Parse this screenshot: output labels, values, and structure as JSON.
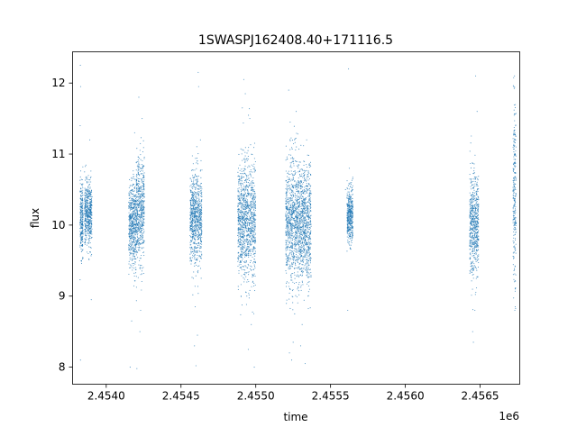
{
  "chart_data": {
    "type": "scatter",
    "title": "1SWASPJ162408.40+171116.5",
    "xlabel": "time",
    "ylabel": "flux",
    "x_offset_label": "1e6",
    "xlim": [
      2453775,
      2456765
    ],
    "ylim": [
      7.76,
      12.44
    ],
    "xticks": [
      2454000,
      2454500,
      2455000,
      2455500,
      2456000,
      2456500
    ],
    "xtick_labels": [
      "2.4540",
      "2.4545",
      "2.4550",
      "2.4555",
      "2.4560",
      "2.4565"
    ],
    "yticks": [
      8,
      9,
      10,
      11,
      12
    ],
    "ytick_labels": [
      "8",
      "9",
      "10",
      "11",
      "12"
    ],
    "grid": false,
    "marker_color": "#1f77b4",
    "seasons": [
      {
        "start": 2453825,
        "end": 2453845,
        "center": 10.1,
        "spread": 0.25,
        "outliers": [
          {
            "t": 2453827,
            "f": 12.25
          },
          {
            "t": 2453829,
            "f": 11.95
          },
          {
            "t": 2453826,
            "f": 11.4
          },
          {
            "t": 2453828,
            "f": 8.1
          },
          {
            "t": 2453835,
            "f": 9.5
          }
        ]
      },
      {
        "start": 2453855,
        "end": 2453905,
        "center": 10.15,
        "spread": 0.22,
        "outliers": [
          {
            "t": 2453890,
            "f": 11.2
          },
          {
            "t": 2453900,
            "f": 8.95
          },
          {
            "t": 2453880,
            "f": 9.6
          }
        ]
      },
      {
        "start": 2454150,
        "end": 2454200,
        "center": 10.0,
        "spread": 0.3,
        "outliers": [
          {
            "t": 2454160,
            "f": 8.0
          },
          {
            "t": 2454170,
            "f": 8.65
          },
          {
            "t": 2454190,
            "f": 11.3
          }
        ]
      },
      {
        "start": 2454200,
        "end": 2454255,
        "center": 10.2,
        "spread": 0.38,
        "outliers": [
          {
            "t": 2454218,
            "f": 11.8
          },
          {
            "t": 2454205,
            "f": 7.98
          },
          {
            "t": 2454225,
            "f": 8.5
          },
          {
            "t": 2454240,
            "f": 11.5
          },
          {
            "t": 2454230,
            "f": 8.8
          }
        ]
      },
      {
        "start": 2454560,
        "end": 2454640,
        "center": 10.1,
        "spread": 0.32,
        "outliers": [
          {
            "t": 2454600,
            "f": 8.02
          },
          {
            "t": 2454610,
            "f": 8.45
          },
          {
            "t": 2454615,
            "f": 12.15
          },
          {
            "t": 2454618,
            "f": 11.95
          },
          {
            "t": 2454590,
            "f": 8.3
          },
          {
            "t": 2454595,
            "f": 8.85
          },
          {
            "t": 2454630,
            "f": 11.2
          }
        ]
      },
      {
        "start": 2454880,
        "end": 2455000,
        "center": 10.05,
        "spread": 0.42,
        "outliers": [
          {
            "t": 2454920,
            "f": 12.05
          },
          {
            "t": 2454930,
            "f": 11.85
          },
          {
            "t": 2454910,
            "f": 11.65
          },
          {
            "t": 2454990,
            "f": 8.0
          },
          {
            "t": 2454970,
            "f": 8.6
          },
          {
            "t": 2454950,
            "f": 8.25
          },
          {
            "t": 2454940,
            "f": 9.0
          },
          {
            "t": 2454960,
            "f": 11.5
          }
        ]
      },
      {
        "start": 2455200,
        "end": 2455290,
        "center": 10.05,
        "spread": 0.45,
        "outliers": [
          {
            "t": 2455220,
            "f": 11.9
          },
          {
            "t": 2455230,
            "f": 11.45
          },
          {
            "t": 2455240,
            "f": 8.1
          },
          {
            "t": 2455250,
            "f": 8.35
          },
          {
            "t": 2455260,
            "f": 8.75
          },
          {
            "t": 2455225,
            "f": 8.2
          },
          {
            "t": 2455270,
            "f": 11.6
          }
        ]
      },
      {
        "start": 2455290,
        "end": 2455370,
        "center": 10.0,
        "spread": 0.4,
        "outliers": [
          {
            "t": 2455300,
            "f": 8.3
          },
          {
            "t": 2455310,
            "f": 8.6
          },
          {
            "t": 2455330,
            "f": 8.05
          },
          {
            "t": 2455350,
            "f": 9.0
          },
          {
            "t": 2455340,
            "f": 11.2
          }
        ]
      },
      {
        "start": 2455610,
        "end": 2455650,
        "center": 10.15,
        "spread": 0.2,
        "outliers": [
          {
            "t": 2455620,
            "f": 12.2
          },
          {
            "t": 2455625,
            "f": 10.8
          },
          {
            "t": 2455615,
            "f": 8.8
          },
          {
            "t": 2455600,
            "f": 10.5
          }
        ]
      },
      {
        "start": 2456430,
        "end": 2456490,
        "center": 10.0,
        "spread": 0.35,
        "outliers": [
          {
            "t": 2456450,
            "f": 8.5
          },
          {
            "t": 2456455,
            "f": 8.35
          },
          {
            "t": 2456470,
            "f": 12.1
          },
          {
            "t": 2456480,
            "f": 11.6
          },
          {
            "t": 2456465,
            "f": 8.8
          }
        ]
      },
      {
        "start": 2456720,
        "end": 2456740,
        "center": 10.4,
        "spread": 0.65,
        "outliers": [
          {
            "t": 2456730,
            "f": 12.1
          },
          {
            "t": 2456725,
            "f": 11.95
          },
          {
            "t": 2456735,
            "f": 8.85
          },
          {
            "t": 2456732,
            "f": 8.8
          }
        ]
      }
    ]
  }
}
